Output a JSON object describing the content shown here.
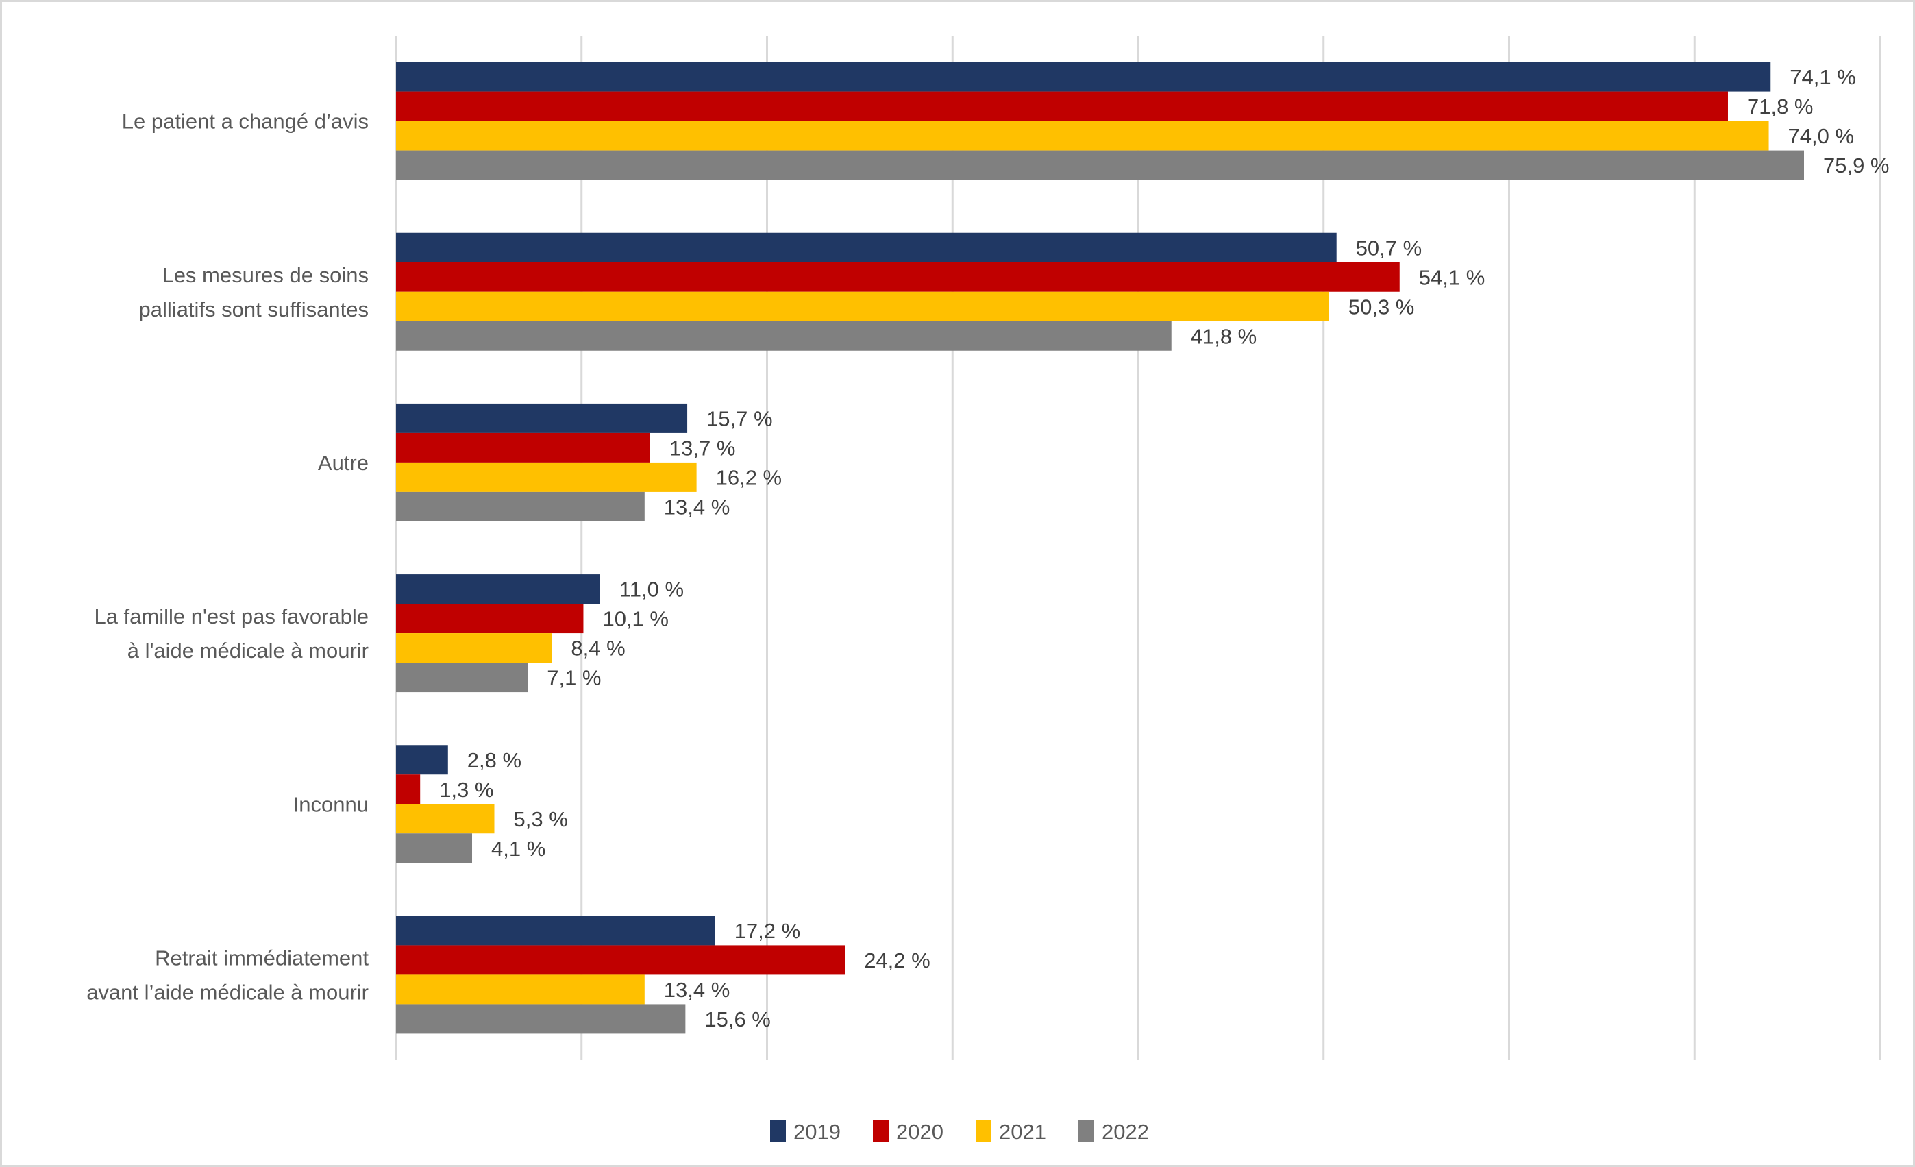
{
  "chart_data": {
    "type": "bar",
    "orientation": "horizontal",
    "title": "",
    "xlabel": "",
    "ylabel": "",
    "xlim": [
      0,
      80
    ],
    "grid": true,
    "grid_step": 10,
    "value_suffix": " %",
    "decimal_separator": ",",
    "legend_position": "bottom",
    "categories": [
      [
        "Le patient a changé d’avis"
      ],
      [
        "Les mesures de soins",
        "palliatifs sont suffisantes"
      ],
      [
        "Autre"
      ],
      [
        "La famille n'est pas favorable",
        "à l'aide médicale à mourir"
      ],
      [
        "Inconnu"
      ],
      [
        "Retrait immédiatement",
        "avant l’aide médicale à mourir"
      ]
    ],
    "series": [
      {
        "name": "2019",
        "color": "#203864",
        "values": [
          74.1,
          50.7,
          15.7,
          11.0,
          2.8,
          17.2
        ]
      },
      {
        "name": "2020",
        "color": "#c00000",
        "values": [
          71.8,
          54.1,
          13.7,
          10.1,
          1.3,
          24.2
        ]
      },
      {
        "name": "2021",
        "color": "#ffc000",
        "values": [
          74.0,
          50.3,
          16.2,
          8.4,
          5.3,
          13.4
        ]
      },
      {
        "name": "2022",
        "color": "#808080",
        "values": [
          75.9,
          41.8,
          13.4,
          7.1,
          4.1,
          15.6
        ]
      }
    ]
  }
}
